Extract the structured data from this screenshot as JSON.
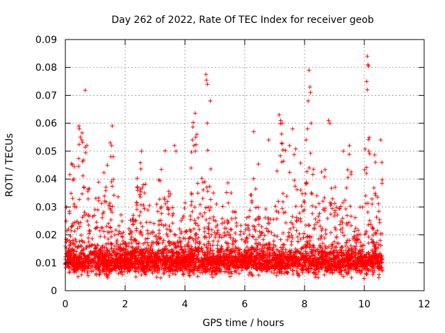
{
  "chart_data": {
    "type": "scatter",
    "title": "Day 262 of 2022, Rate Of TEC Index for receiver geob",
    "xlabel": "GPS time / hours",
    "ylabel": "ROTI / TECUs",
    "xlim": [
      0,
      12
    ],
    "ylim": [
      0,
      0.09
    ],
    "x_ticks": [
      0,
      2,
      4,
      6,
      8,
      10,
      12
    ],
    "x_tick_labels": [
      "0",
      "2",
      "4",
      "6",
      "8",
      "10",
      "12"
    ],
    "y_ticks": [
      0,
      0.01,
      0.02,
      0.03,
      0.04,
      0.05,
      0.06,
      0.07,
      0.08,
      0.09
    ],
    "y_tick_labels": [
      "0",
      "0.01",
      "0.02",
      "0.03",
      "0.04",
      "0.05",
      "0.06",
      "0.07",
      "0.08",
      "0.09"
    ],
    "grid": true,
    "marker": "+",
    "series_color": "#ff0000",
    "data_extent_x": [
      0,
      10.6
    ],
    "series": [
      {
        "values_note": "dense cloud of ROTI points, baseline ~0.005-0.015 with spikes",
        "points": [
          [
            0.45,
            0.059
          ],
          [
            0.47,
            0.058
          ],
          [
            0.5,
            0.055
          ],
          [
            0.55,
            0.054
          ],
          [
            0.72,
            0.052
          ],
          [
            1.5,
            0.053
          ],
          [
            1.55,
            0.052
          ],
          [
            1.52,
            0.048
          ],
          [
            1.6,
            0.048
          ],
          [
            2.55,
            0.05
          ],
          [
            3.65,
            0.052
          ],
          [
            3.7,
            0.05
          ],
          [
            4.25,
            0.054
          ],
          [
            4.3,
            0.052
          ],
          [
            4.35,
            0.05
          ],
          [
            4.4,
            0.056
          ],
          [
            4.7,
            0.0775
          ],
          [
            4.72,
            0.0755
          ],
          [
            4.75,
            0.074
          ],
          [
            4.85,
            0.068
          ],
          [
            4.75,
            0.06
          ],
          [
            6.3,
            0.057
          ],
          [
            6.8,
            0.054
          ],
          [
            7.15,
            0.063
          ],
          [
            7.2,
            0.061
          ],
          [
            7.25,
            0.06
          ],
          [
            7.6,
            0.058
          ],
          [
            7.5,
            0.052
          ],
          [
            8.05,
            0.054
          ],
          [
            8.1,
            0.058
          ],
          [
            8.15,
            0.079
          ],
          [
            8.18,
            0.073
          ],
          [
            8.2,
            0.071
          ],
          [
            8.12,
            0.068
          ],
          [
            8.22,
            0.06
          ],
          [
            8.8,
            0.061
          ],
          [
            8.85,
            0.06
          ],
          [
            9.3,
            0.05
          ],
          [
            9.5,
            0.052
          ],
          [
            10.1,
            0.084
          ],
          [
            10.12,
            0.081
          ],
          [
            10.14,
            0.0805
          ],
          [
            10.08,
            0.075
          ],
          [
            10.1,
            0.072
          ],
          [
            10.15,
            0.05
          ],
          [
            10.18,
            0.049
          ],
          [
            10.55,
            0.054
          ]
        ]
      }
    ]
  }
}
